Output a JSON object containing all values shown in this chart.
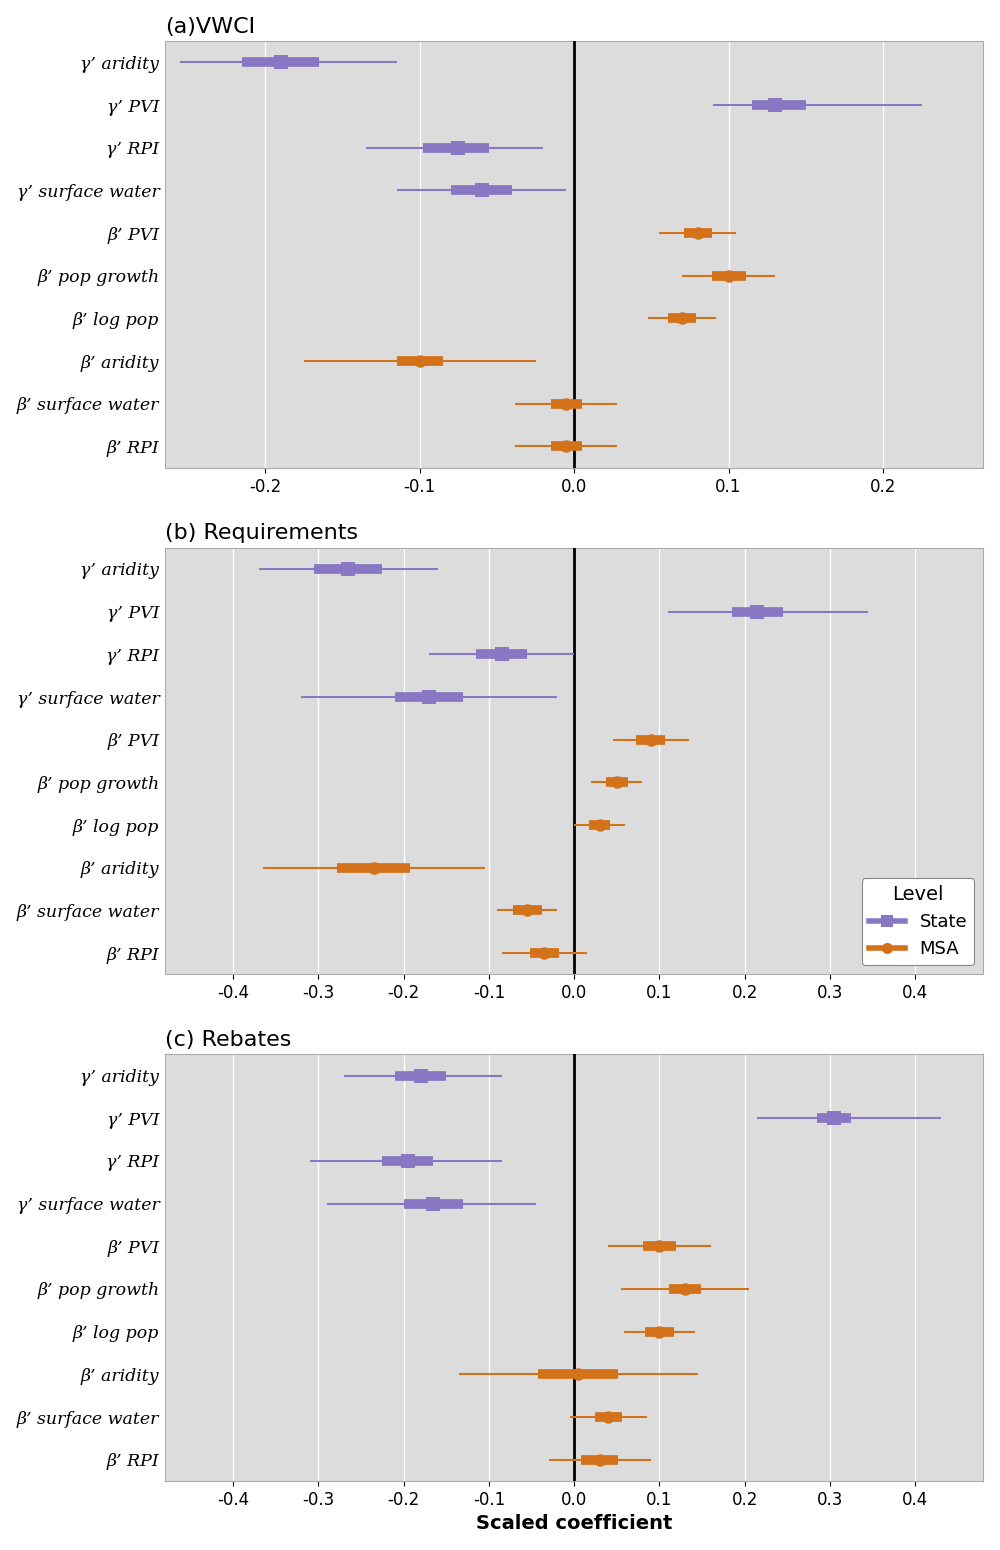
{
  "titles": [
    "(a)VWCI",
    "(b) Requirements",
    "(c) Rebates"
  ],
  "xlabel": "Scaled coefficient",
  "state_color": "#8878c3",
  "msa_color": "#d4721a",
  "bg_color": "#dcdcdc",
  "grid_color": "#ffffff",
  "ytick_labels_line1": [
    "γ’",
    "γ’",
    "γ’",
    "γ’",
    "β’",
    "β’",
    "β’",
    "β’",
    "β’",
    "β’"
  ],
  "ytick_labels_line2": [
    "aridity",
    "PVI",
    "RPI",
    "surface water",
    "PVI",
    "pop growth",
    "log pop",
    "aridity",
    "surface water",
    "RPI"
  ],
  "panels": [
    {
      "title": "(a)VWCI",
      "xlim": [
        -0.265,
        0.265
      ],
      "xticks": [
        -0.2,
        -0.1,
        0.0,
        0.1,
        0.2
      ],
      "xticklabels": [
        "-0.2",
        "-0.1",
        "0.0",
        "0.1",
        "0.2"
      ],
      "state": {
        "centers": [
          -0.19,
          0.13,
          -0.075,
          -0.06
        ],
        "lo": [
          -0.255,
          0.09,
          -0.135,
          -0.115
        ],
        "hi": [
          -0.115,
          0.225,
          -0.02,
          -0.005
        ],
        "lo_inner": [
          -0.215,
          0.115,
          -0.098,
          -0.08
        ],
        "hi_inner": [
          -0.165,
          0.15,
          -0.055,
          -0.04
        ]
      },
      "msa": {
        "centers": [
          0.08,
          0.1,
          0.07,
          -0.1,
          -0.005,
          -0.005
        ],
        "lo": [
          0.055,
          0.07,
          0.048,
          -0.175,
          -0.038,
          -0.038
        ],
        "hi": [
          0.105,
          0.13,
          0.092,
          -0.025,
          0.028,
          0.028
        ],
        "lo_inner": [
          0.071,
          0.089,
          0.061,
          -0.115,
          -0.015,
          -0.015
        ],
        "hi_inner": [
          0.089,
          0.111,
          0.079,
          -0.085,
          0.005,
          0.005
        ]
      }
    },
    {
      "title": "(b) Requirements",
      "xlim": [
        -0.48,
        0.48
      ],
      "xticks": [
        -0.4,
        -0.3,
        -0.2,
        -0.1,
        0.0,
        0.1,
        0.2,
        0.3,
        0.4
      ],
      "xticklabels": [
        "-0.4",
        "-0.3",
        "-0.2",
        "-0.1",
        "0.0",
        "0.1",
        "0.2",
        "0.3",
        "0.4"
      ],
      "state": {
        "centers": [
          -0.265,
          0.215,
          -0.085,
          -0.17
        ],
        "lo": [
          -0.37,
          0.11,
          -0.17,
          -0.32
        ],
        "hi": [
          -0.16,
          0.345,
          0.0,
          -0.02
        ],
        "lo_inner": [
          -0.305,
          0.185,
          -0.115,
          -0.21
        ],
        "hi_inner": [
          -0.225,
          0.245,
          -0.055,
          -0.13
        ]
      },
      "msa": {
        "centers": [
          0.09,
          0.05,
          0.03,
          -0.235,
          -0.055,
          -0.035
        ],
        "lo": [
          0.045,
          0.02,
          0.0,
          -0.365,
          -0.09,
          -0.085
        ],
        "hi": [
          0.135,
          0.08,
          0.06,
          -0.105,
          -0.02,
          0.015
        ],
        "lo_inner": [
          0.073,
          0.037,
          0.018,
          -0.278,
          -0.072,
          -0.052
        ],
        "hi_inner": [
          0.107,
          0.063,
          0.042,
          -0.192,
          -0.038,
          -0.018
        ]
      }
    },
    {
      "title": "(c) Rebates",
      "xlim": [
        -0.48,
        0.48
      ],
      "xticks": [
        -0.4,
        -0.3,
        -0.2,
        -0.1,
        0.0,
        0.1,
        0.2,
        0.3,
        0.4
      ],
      "xticklabels": [
        "-0.4",
        "-0.3",
        "-0.2",
        "-0.1",
        "0.0",
        "0.1",
        "0.2",
        "0.3",
        "0.4"
      ],
      "state": {
        "centers": [
          -0.18,
          0.305,
          -0.195,
          -0.165
        ],
        "lo": [
          -0.27,
          0.215,
          -0.31,
          -0.29
        ],
        "hi": [
          -0.085,
          0.43,
          -0.085,
          -0.045
        ],
        "lo_inner": [
          -0.21,
          0.285,
          -0.225,
          -0.2
        ],
        "hi_inner": [
          -0.15,
          0.325,
          -0.165,
          -0.13
        ]
      },
      "msa": {
        "centers": [
          0.1,
          0.13,
          0.1,
          0.005,
          0.04,
          0.03
        ],
        "lo": [
          0.04,
          0.055,
          0.058,
          -0.135,
          -0.005,
          -0.03
        ],
        "hi": [
          0.16,
          0.205,
          0.142,
          0.145,
          0.085,
          0.09
        ],
        "lo_inner": [
          0.081,
          0.111,
          0.083,
          -0.042,
          0.024,
          0.008
        ],
        "hi_inner": [
          0.119,
          0.149,
          0.117,
          0.052,
          0.056,
          0.052
        ]
      }
    }
  ]
}
